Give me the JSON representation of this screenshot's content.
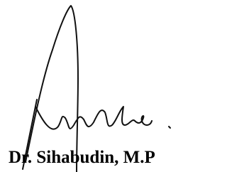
{
  "signature": {
    "name": "Dr. Sihabudin, M.P"
  }
}
